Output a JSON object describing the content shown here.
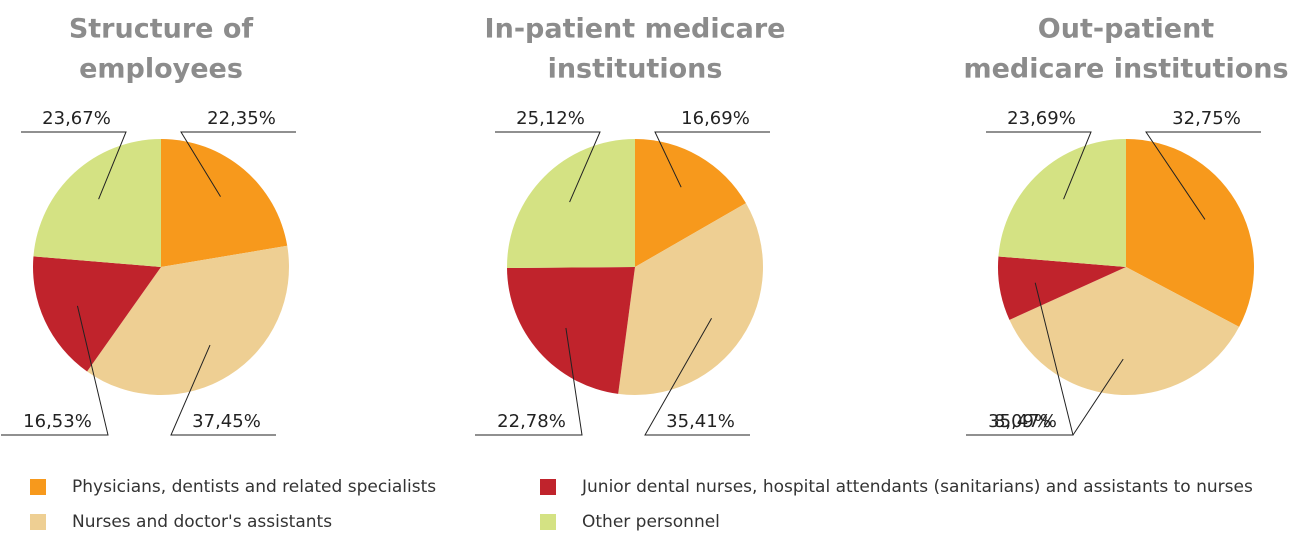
{
  "chart_data": [
    {
      "type": "pie",
      "title": [
        "Structure of",
        "employees"
      ],
      "values": [
        22.35,
        37.45,
        16.53,
        23.67
      ],
      "value_labels": [
        "22,35%",
        "37,45%",
        "16,53%",
        "23,67%"
      ]
    },
    {
      "type": "pie",
      "title": [
        "In-patient medicare",
        "institutions"
      ],
      "values": [
        16.69,
        35.41,
        22.78,
        25.12
      ],
      "value_labels": [
        "16,69%",
        "35,41%",
        "22,78%",
        "25,12%"
      ]
    },
    {
      "type": "pie",
      "title": [
        "Out-patient",
        "medicare institutions"
      ],
      "values": [
        32.75,
        35.47,
        8.09,
        23.69
      ],
      "value_labels": [
        "32,75%",
        "35,47%",
        "8,09%",
        "23,69%"
      ]
    }
  ],
  "legend": [
    {
      "name": "Physicians, dentists and related specialists",
      "color": "#f7991c"
    },
    {
      "name": "Nurses and doctor's assistants",
      "color": "#eecf93"
    },
    {
      "name": "Junior dental nurses, hospital attendants (sanitarians) and assistants to nurses",
      "color": "#c0232c"
    },
    {
      "name": "Other personnel",
      "color": "#d4e283"
    }
  ]
}
